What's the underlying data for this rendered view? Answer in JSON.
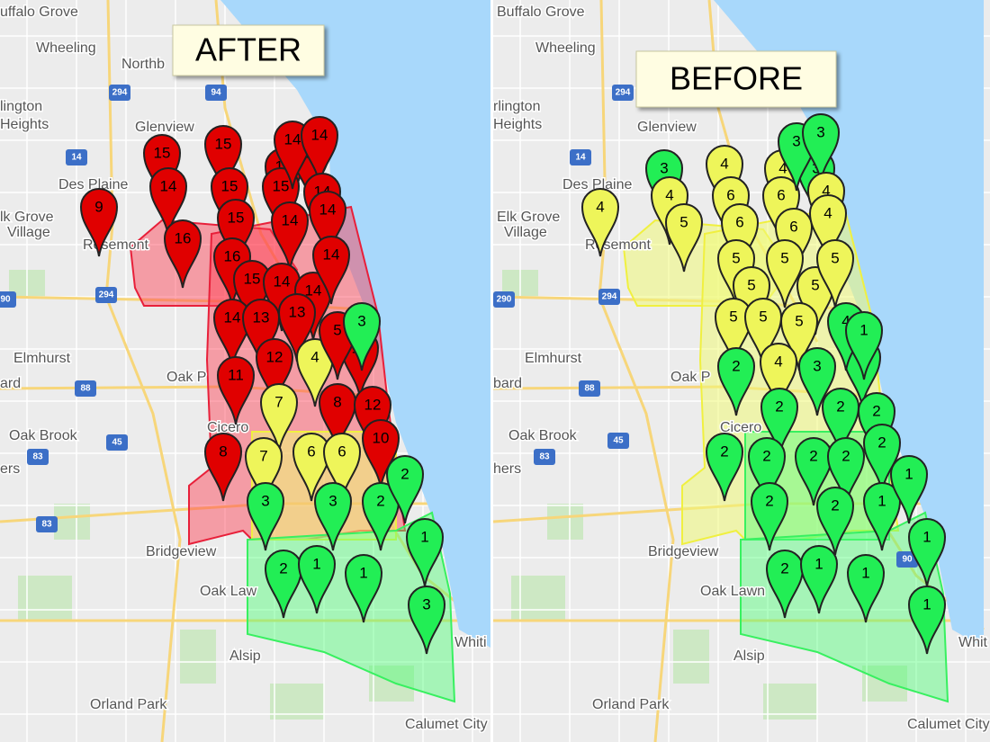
{
  "panels": [
    {
      "title": "AFTER",
      "places": [
        "uffalo Grove",
        "Wheeling",
        "Northb",
        "lington",
        "Heights",
        "Glenview",
        "Des Plaine",
        "lk Grove",
        "Village",
        "Rosemont",
        "Elmhurst",
        "Oak P",
        "ard",
        "Cicero",
        "Oak Brook",
        "ers",
        "Bridgeview",
        "Oak Law",
        "Alsip",
        "Orland Park",
        "Calumet City",
        "Whiti"
      ],
      "highways": [
        "294",
        "94",
        "14",
        "90",
        "294",
        "88",
        "45",
        "83",
        "83"
      ],
      "pins": [
        {
          "label": "9",
          "color": "#e00000"
        },
        {
          "label": "15",
          "color": "#e00000"
        },
        {
          "label": "14",
          "color": "#e00000"
        },
        {
          "label": "16",
          "color": "#e00000"
        },
        {
          "label": "15",
          "color": "#e00000"
        },
        {
          "label": "15",
          "color": "#e00000"
        },
        {
          "label": "15",
          "color": "#e00000"
        },
        {
          "label": "16",
          "color": "#e00000"
        },
        {
          "label": "15",
          "color": "#e00000"
        },
        {
          "label": "14",
          "color": "#e00000"
        },
        {
          "label": "15",
          "color": "#e00000"
        },
        {
          "label": "14",
          "color": "#e00000"
        },
        {
          "label": "13",
          "color": "#e00000"
        },
        {
          "label": "14",
          "color": "#e00000"
        },
        {
          "label": "14",
          "color": "#e00000"
        },
        {
          "label": "14",
          "color": "#e00000"
        },
        {
          "label": "14",
          "color": "#e00000"
        },
        {
          "label": "14",
          "color": "#e00000"
        },
        {
          "label": "14",
          "color": "#e00000"
        },
        {
          "label": "14",
          "color": "#e00000"
        },
        {
          "label": "14",
          "color": "#e00000"
        },
        {
          "label": "13",
          "color": "#e00000"
        },
        {
          "label": "13",
          "color": "#e00000"
        },
        {
          "label": "12",
          "color": "#e00000"
        },
        {
          "label": "11",
          "color": "#e00000"
        },
        {
          "label": "4",
          "color": "#eef55a"
        },
        {
          "label": "10",
          "color": "#e00000"
        },
        {
          "label": "5",
          "color": "#e00000"
        },
        {
          "label": "3",
          "color": "#22ee55"
        },
        {
          "label": "7",
          "color": "#eef55a"
        },
        {
          "label": "8",
          "color": "#e00000"
        },
        {
          "label": "12",
          "color": "#e00000"
        },
        {
          "label": "10",
          "color": "#e00000"
        },
        {
          "label": "8",
          "color": "#e00000"
        },
        {
          "label": "7",
          "color": "#eef55a"
        },
        {
          "label": "6",
          "color": "#eef55a"
        },
        {
          "label": "6",
          "color": "#eef55a"
        },
        {
          "label": "3",
          "color": "#22ee55"
        },
        {
          "label": "3",
          "color": "#22ee55"
        },
        {
          "label": "2",
          "color": "#22ee55"
        },
        {
          "label": "2",
          "color": "#22ee55"
        },
        {
          "label": "1",
          "color": "#22ee55"
        },
        {
          "label": "2",
          "color": "#22ee55"
        },
        {
          "label": "1",
          "color": "#22ee55"
        },
        {
          "label": "1",
          "color": "#22ee55"
        },
        {
          "label": "3",
          "color": "#22ee55"
        }
      ]
    },
    {
      "title": "BEFORE",
      "places": [
        "Buffalo Grove",
        "Wheeling",
        "rlington",
        "Heights",
        "Glenview",
        "Des Plaine",
        "Elk Grove",
        "Village",
        "Rosemont",
        "Elmhurst",
        "Oak P",
        "bard",
        "Cicero",
        "Oak Brook",
        "hers",
        "Bridgeview",
        "Oak Lawn",
        "Alsip",
        "Orland Park",
        "Calumet City",
        "Whit"
      ],
      "highways": [
        "294",
        "14",
        "290",
        "294",
        "88",
        "45",
        "83",
        "90"
      ],
      "pins": [
        {
          "label": "4",
          "color": "#eef55a"
        },
        {
          "label": "3",
          "color": "#22ee55"
        },
        {
          "label": "4",
          "color": "#eef55a"
        },
        {
          "label": "5",
          "color": "#eef55a"
        },
        {
          "label": "4",
          "color": "#eef55a"
        },
        {
          "label": "6",
          "color": "#eef55a"
        },
        {
          "label": "6",
          "color": "#eef55a"
        },
        {
          "label": "5",
          "color": "#eef55a"
        },
        {
          "label": "5",
          "color": "#eef55a"
        },
        {
          "label": "4",
          "color": "#eef55a"
        },
        {
          "label": "6",
          "color": "#eef55a"
        },
        {
          "label": "6",
          "color": "#eef55a"
        },
        {
          "label": "3",
          "color": "#22ee55"
        },
        {
          "label": "3",
          "color": "#22ee55"
        },
        {
          "label": "3",
          "color": "#22ee55"
        },
        {
          "label": "4",
          "color": "#eef55a"
        },
        {
          "label": "4",
          "color": "#eef55a"
        },
        {
          "label": "5",
          "color": "#eef55a"
        },
        {
          "label": "5",
          "color": "#eef55a"
        },
        {
          "label": "5",
          "color": "#eef55a"
        },
        {
          "label": "5",
          "color": "#eef55a"
        },
        {
          "label": "5",
          "color": "#eef55a"
        },
        {
          "label": "5",
          "color": "#eef55a"
        },
        {
          "label": "4",
          "color": "#eef55a"
        },
        {
          "label": "2",
          "color": "#22ee55"
        },
        {
          "label": "3",
          "color": "#22ee55"
        },
        {
          "label": "1",
          "color": "#22ee55"
        },
        {
          "label": "4",
          "color": "#22ee55"
        },
        {
          "label": "1",
          "color": "#22ee55"
        },
        {
          "label": "2",
          "color": "#22ee55"
        },
        {
          "label": "2",
          "color": "#22ee55"
        },
        {
          "label": "2",
          "color": "#22ee55"
        },
        {
          "label": "2",
          "color": "#22ee55"
        },
        {
          "label": "2",
          "color": "#22ee55"
        },
        {
          "label": "2",
          "color": "#22ee55"
        },
        {
          "label": "2",
          "color": "#22ee55"
        },
        {
          "label": "2",
          "color": "#22ee55"
        },
        {
          "label": "2",
          "color": "#22ee55"
        },
        {
          "label": "2",
          "color": "#22ee55"
        },
        {
          "label": "1",
          "color": "#22ee55"
        },
        {
          "label": "1",
          "color": "#22ee55"
        },
        {
          "label": "1",
          "color": "#22ee55"
        },
        {
          "label": "2",
          "color": "#22ee55"
        },
        {
          "label": "1",
          "color": "#22ee55"
        },
        {
          "label": "1",
          "color": "#22ee55"
        },
        {
          "label": "1",
          "color": "#22ee55"
        }
      ]
    }
  ]
}
